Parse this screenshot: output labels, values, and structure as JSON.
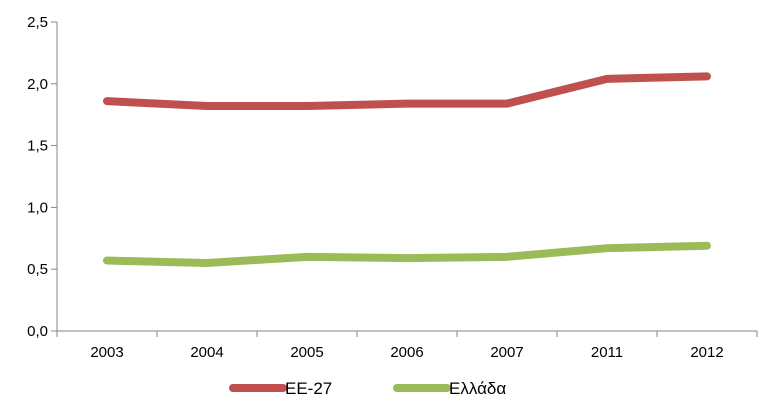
{
  "chart_data": {
    "type": "line",
    "categories": [
      "2003",
      "2004",
      "2005",
      "2006",
      "2007",
      "2011",
      "2012"
    ],
    "series": [
      {
        "name": "ΕΕ-27",
        "color": "#c0504d",
        "values": [
          1.86,
          1.82,
          1.82,
          1.84,
          1.84,
          2.04,
          2.06
        ]
      },
      {
        "name": "Ελλάδα",
        "color": "#9bbb59",
        "values": [
          0.57,
          0.55,
          0.6,
          0.59,
          0.6,
          0.67,
          0.69
        ]
      }
    ],
    "y_ticks": [
      "0,0",
      "0,5",
      "1,0",
      "1,5",
      "2,0",
      "2,5"
    ],
    "ylim": [
      0,
      2.5
    ],
    "grid": false,
    "legend_position": "bottom"
  }
}
